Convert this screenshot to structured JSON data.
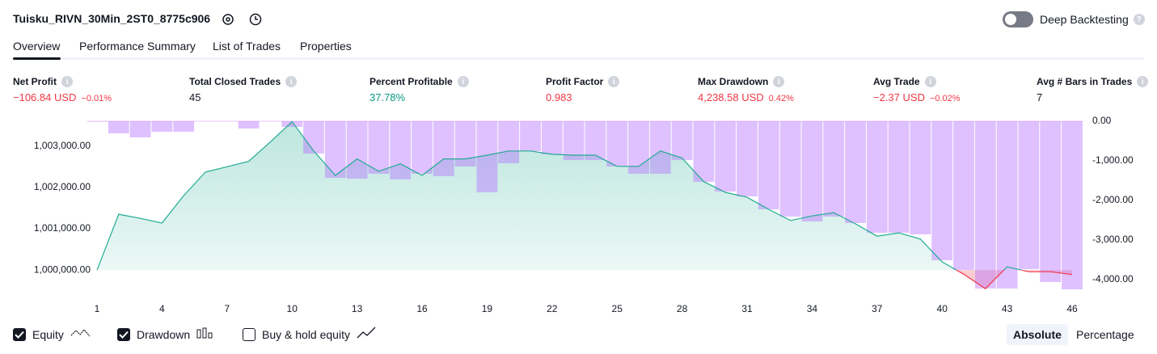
{
  "header": {
    "title": "Tuisku_RIVN_30Min_2ST0_8775c906",
    "deep_backtesting": "Deep Backtesting"
  },
  "tabs": [
    "Overview",
    "Performance Summary",
    "List of Trades",
    "Properties"
  ],
  "metrics": [
    {
      "label": "Net Profit",
      "value": "−106.84 USD",
      "change": "−0.01%",
      "color": "#f23645"
    },
    {
      "label": "Total Closed Trades",
      "value": "45",
      "color": "#131722"
    },
    {
      "label": "Percent Profitable",
      "value": "37.78%",
      "color": "#089981"
    },
    {
      "label": "Profit Factor",
      "value": "0.983",
      "color": "#f23645"
    },
    {
      "label": "Max Drawdown",
      "value": "4,238.58 USD",
      "change": "0.42%",
      "color": "#f23645"
    },
    {
      "label": "Avg Trade",
      "value": "−2.37 USD",
      "change": "−0.02%",
      "color": "#f23645"
    },
    {
      "label": "Avg # Bars in Trades",
      "value": "7",
      "color": "#131722"
    }
  ],
  "chart_data": {
    "type": "equity",
    "x": [
      1,
      2,
      3,
      4,
      5,
      6,
      7,
      8,
      9,
      10,
      11,
      12,
      13,
      14,
      15,
      16,
      17,
      18,
      19,
      20,
      21,
      22,
      23,
      24,
      25,
      26,
      27,
      28,
      29,
      30,
      31,
      32,
      33,
      34,
      35,
      36,
      37,
      38,
      39,
      40,
      41,
      42,
      43,
      44,
      45,
      46
    ],
    "xlim": [
      1,
      46
    ],
    "xticks": [
      1,
      4,
      7,
      10,
      13,
      16,
      19,
      22,
      25,
      28,
      31,
      34,
      37,
      40,
      43,
      46
    ],
    "ylim": [
      999300,
      1003600
    ],
    "yticks": [
      {
        "value": 1000000,
        "label": "1,000,000.00"
      },
      {
        "value": 1001000,
        "label": "1,001,000.00"
      },
      {
        "value": 1002000,
        "label": "1,002,000.00"
      },
      {
        "value": 1003000,
        "label": "1,003,000.00"
      }
    ],
    "y2lim": [
      -4490,
      0
    ],
    "y2ticks": [
      {
        "value": 0,
        "label": "0.00"
      },
      {
        "value": -1000,
        "label": "-1,000.00"
      },
      {
        "value": -2000,
        "label": "-2,000.00"
      },
      {
        "value": -3000,
        "label": "-3,000.00"
      },
      {
        "value": -4000,
        "label": "-4,000.00"
      }
    ],
    "baseline": 1000000,
    "series": [
      {
        "name": "Equity",
        "color": "#22ab94",
        "below_color": "#f23645",
        "values": [
          1000000,
          1001350,
          1001250,
          1001140,
          1001800,
          1002370,
          1002500,
          1002630,
          1003100,
          1003590,
          1002880,
          1002290,
          1002690,
          1002390,
          1002570,
          1002290,
          1002690,
          1002690,
          1002780,
          1002880,
          1002880,
          1002800,
          1002780,
          1002780,
          1002510,
          1002510,
          1002880,
          1002710,
          1002140,
          1001880,
          1001760,
          1001470,
          1001200,
          1001310,
          1001390,
          1001120,
          1000820,
          1000900,
          1000750,
          1000200,
          999900,
          999550,
          1000080,
          999960,
          999960,
          999893
        ]
      },
      {
        "name": "Drawdown",
        "color": "#b36bff",
        "axis": "y2",
        "values": [
          -10,
          -306,
          -408,
          -265,
          -265,
          0,
          0,
          -184,
          0,
          -143,
          -816,
          -1429,
          -1449,
          -1327,
          -1469,
          -1327,
          -1388,
          -1143,
          -1796,
          -1061,
          -755,
          -837,
          -980,
          -980,
          -1143,
          -1327,
          -1327,
          -980,
          -1531,
          -1776,
          -1898,
          -2224,
          -2408,
          -2531,
          -2408,
          -2571,
          -2816,
          -2816,
          -2857,
          -3510,
          -3755,
          -4224,
          -4224,
          -3735,
          -4061,
          -4245
        ]
      }
    ]
  },
  "footer": {
    "buy_hold": "Buy & hold equity",
    "scale_buttons": [
      "Absolute",
      "Percentage"
    ]
  }
}
